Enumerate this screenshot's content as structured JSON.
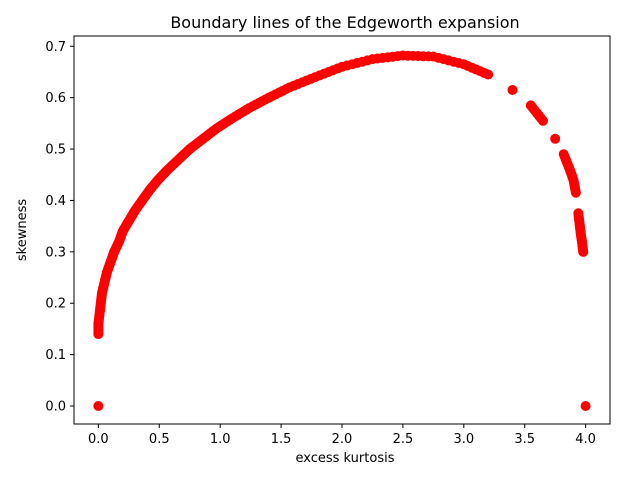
{
  "chart_data": {
    "type": "scatter",
    "title": "Boundary lines of the Edgeworth expansion",
    "xlabel": "excess kurtosis",
    "ylabel": "skewness",
    "xlim": [
      -0.2,
      4.2
    ],
    "ylim": [
      -0.035,
      0.72
    ],
    "xticks": [
      "0.0",
      "0.5",
      "1.0",
      "1.5",
      "2.0",
      "2.5",
      "3.0",
      "3.5",
      "4.0"
    ],
    "yticks": [
      "0.0",
      "0.1",
      "0.2",
      "0.3",
      "0.4",
      "0.5",
      "0.6",
      "0.7"
    ],
    "grid": false,
    "marker_color": "#ff0000",
    "series": [
      {
        "name": "",
        "points": [
          [
            0.0,
            0.14
          ],
          [
            0.0,
            0.16
          ],
          [
            0.01,
            0.18
          ],
          [
            0.02,
            0.2
          ],
          [
            0.03,
            0.22
          ],
          [
            0.05,
            0.24
          ],
          [
            0.07,
            0.26
          ],
          [
            0.1,
            0.28
          ],
          [
            0.13,
            0.3
          ],
          [
            0.17,
            0.32
          ],
          [
            0.2,
            0.34
          ],
          [
            0.25,
            0.36
          ],
          [
            0.3,
            0.38
          ],
          [
            0.36,
            0.4
          ],
          [
            0.42,
            0.42
          ],
          [
            0.49,
            0.44
          ],
          [
            0.57,
            0.46
          ],
          [
            0.66,
            0.48
          ],
          [
            0.75,
            0.5
          ],
          [
            0.86,
            0.52
          ],
          [
            0.97,
            0.54
          ],
          [
            1.1,
            0.56
          ],
          [
            1.24,
            0.58
          ],
          [
            1.4,
            0.6
          ],
          [
            1.57,
            0.62
          ],
          [
            1.78,
            0.64
          ],
          [
            2.0,
            0.66
          ],
          [
            2.25,
            0.675
          ],
          [
            2.5,
            0.682
          ],
          [
            2.75,
            0.68
          ],
          [
            3.0,
            0.665
          ],
          [
            3.2,
            0.645
          ],
          [
            3.4,
            0.615
          ],
          [
            3.55,
            0.585
          ],
          [
            3.65,
            0.555
          ],
          [
            3.75,
            0.52
          ],
          [
            3.82,
            0.49
          ],
          [
            3.87,
            0.46
          ],
          [
            3.9,
            0.44
          ],
          [
            3.92,
            0.415
          ],
          [
            3.94,
            0.375
          ],
          [
            3.95,
            0.355
          ],
          [
            3.96,
            0.335
          ],
          [
            3.97,
            0.32
          ],
          [
            3.98,
            0.3
          ],
          [
            0.0,
            0.0
          ],
          [
            4.0,
            0.0
          ]
        ]
      }
    ]
  }
}
